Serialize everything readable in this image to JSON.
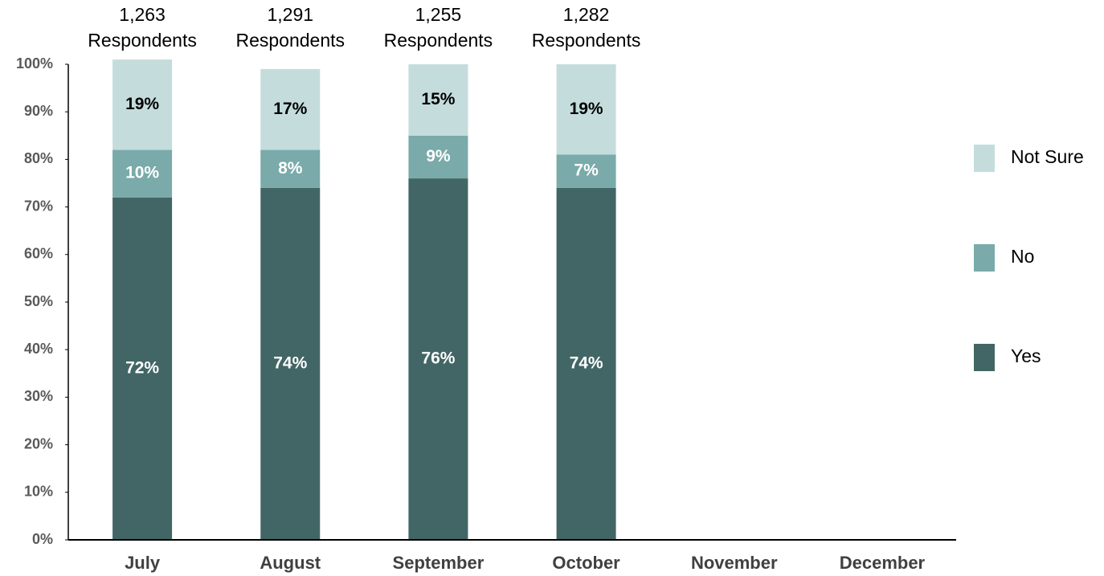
{
  "chart_data": {
    "type": "stacked_bar",
    "categories": [
      "July",
      "August",
      "September",
      "October",
      "November",
      "December"
    ],
    "respondent_counts": [
      "1,263",
      "1,291",
      "1,255",
      "1,282"
    ],
    "respondent_unit": "Respondents",
    "series": [
      {
        "name": "Yes",
        "color": "#426665",
        "label_color": "#ffffff",
        "values": [
          72,
          74,
          76,
          74,
          null,
          null
        ],
        "value_labels": [
          "72%",
          "74%",
          "76%",
          "74%",
          null,
          null
        ]
      },
      {
        "name": "No",
        "color": "#7aaaaa",
        "label_color": "#ffffff",
        "values": [
          10,
          8,
          9,
          7,
          null,
          null
        ],
        "value_labels": [
          "10%",
          "8%",
          "9%",
          "7%",
          null,
          null
        ]
      },
      {
        "name": "Not Sure",
        "color": "#c5dcdc",
        "label_color": "#000000",
        "values": [
          19,
          17,
          15,
          19,
          null,
          null
        ],
        "value_labels": [
          "19%",
          "17%",
          "15%",
          "19%",
          null,
          null
        ]
      }
    ],
    "ylim": [
      0,
      100
    ],
    "yticks": [
      {
        "value": 0,
        "label": "0%"
      },
      {
        "value": 10,
        "label": "10%"
      },
      {
        "value": 20,
        "label": "20%"
      },
      {
        "value": 30,
        "label": "30%"
      },
      {
        "value": 40,
        "label": "40%"
      },
      {
        "value": 50,
        "label": "50%"
      },
      {
        "value": 60,
        "label": "60%"
      },
      {
        "value": 70,
        "label": "70%"
      },
      {
        "value": 80,
        "label": "80%"
      },
      {
        "value": 90,
        "label": "90%"
      },
      {
        "value": 100,
        "label": "100%"
      }
    ],
    "grid": false,
    "legend": "right"
  }
}
